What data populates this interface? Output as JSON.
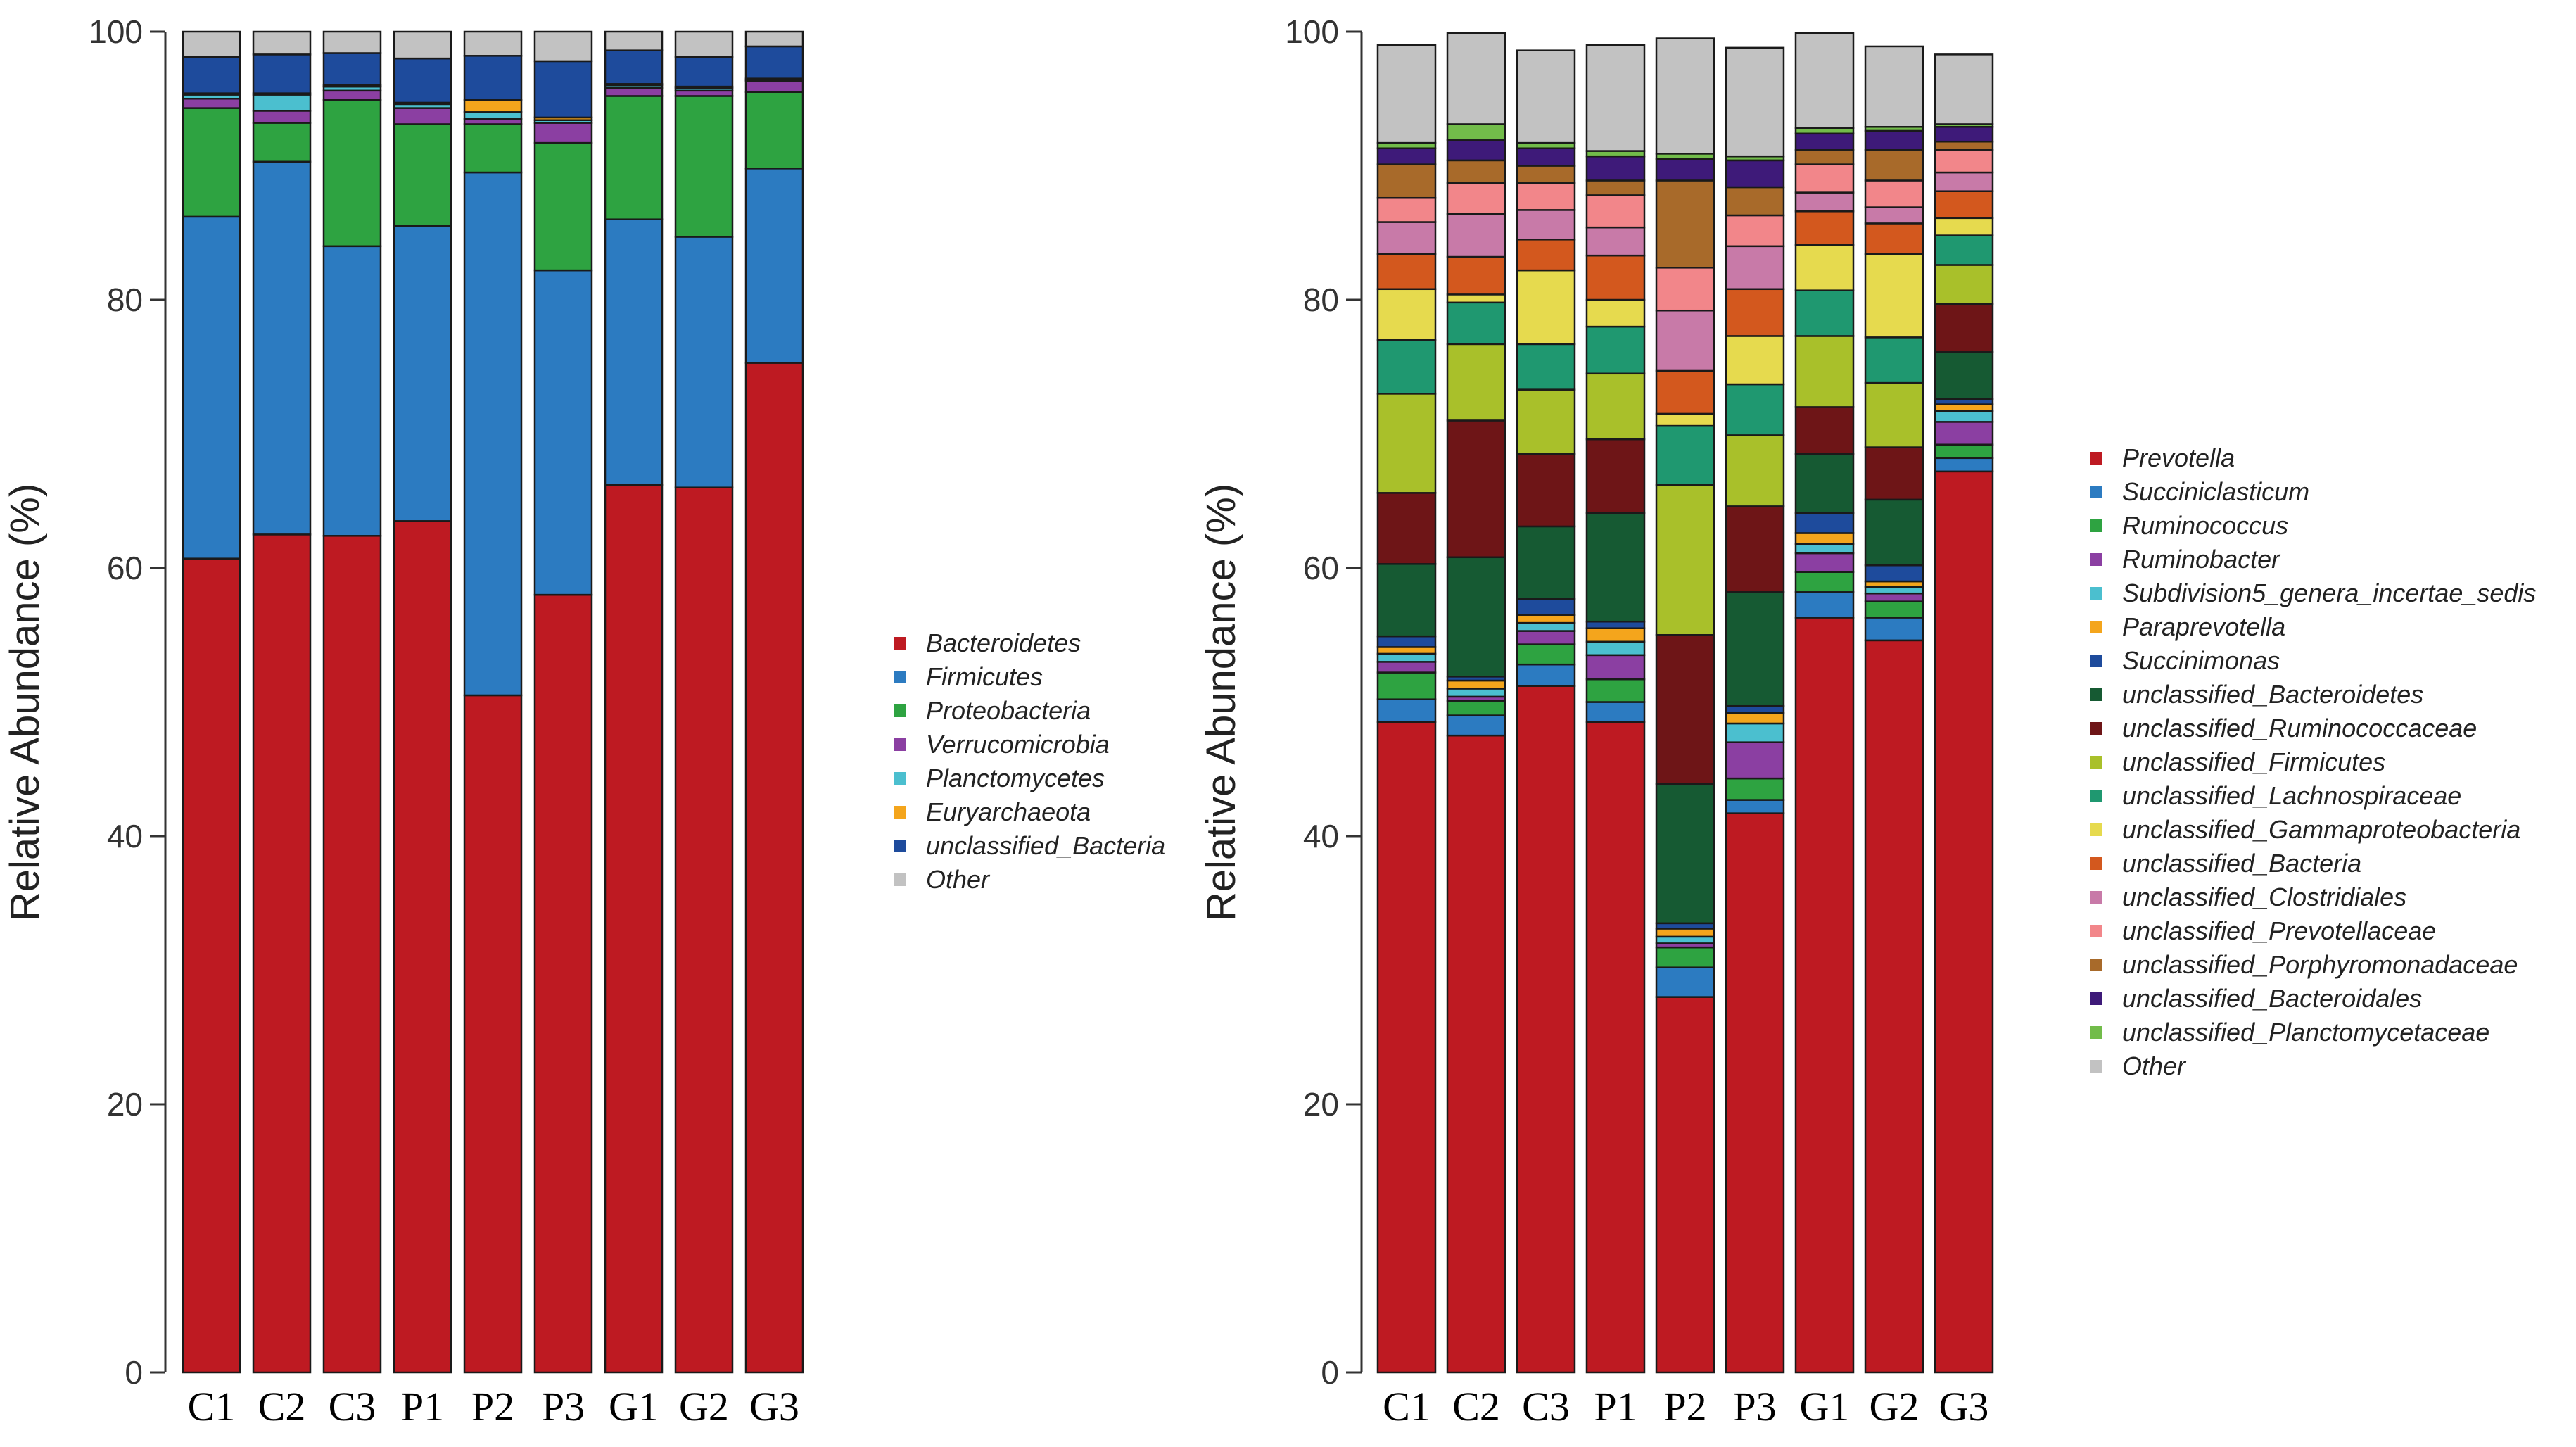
{
  "chart_data": [
    {
      "type": "bar",
      "stacked": true,
      "title": "",
      "xlabel": "",
      "ylabel": "Relative Abundance (%)",
      "ylim": [
        0,
        100
      ],
      "yticks": [
        "0",
        "20",
        "40",
        "60",
        "80",
        "100"
      ],
      "legend_position": "right",
      "categories": [
        "C1",
        "C2",
        "C3",
        "P1",
        "P2",
        "P3",
        "G1",
        "G2",
        "G3"
      ],
      "series": [
        {
          "name": "Bacteroidetes",
          "color": "#BE1A22",
          "values": [
            60.7,
            62.5,
            62.4,
            63.5,
            50.5,
            58.0,
            66.2,
            66.0,
            75.3
          ]
        },
        {
          "name": "Firmicutes",
          "color": "#2C7BC1",
          "values": [
            25.5,
            27.8,
            21.6,
            22.0,
            39.0,
            24.2,
            19.8,
            18.7,
            14.5
          ]
        },
        {
          "name": "Proteobacteria",
          "color": "#2EA341",
          "values": [
            8.1,
            2.9,
            10.9,
            7.6,
            3.6,
            9.5,
            9.2,
            10.5,
            5.7
          ]
        },
        {
          "name": "Verrucomicrobia",
          "color": "#8B3FA2",
          "values": [
            0.7,
            0.9,
            0.7,
            1.2,
            0.4,
            1.5,
            0.6,
            0.4,
            0.8
          ]
        },
        {
          "name": "Planctomycetes",
          "color": "#4BBFCF",
          "values": [
            0.3,
            1.2,
            0.3,
            0.3,
            0.5,
            0.2,
            0.2,
            0.2,
            0.1
          ]
        },
        {
          "name": "Euryarchaeota",
          "color": "#F4A51C",
          "values": [
            0.1,
            0.1,
            0.1,
            0.1,
            0.9,
            0.2,
            0.1,
            0.1,
            0.1
          ]
        },
        {
          "name": "unclassified_Bacteria",
          "color": "#1E4B9C",
          "values": [
            2.7,
            2.9,
            2.4,
            3.3,
            3.3,
            4.2,
            2.5,
            2.2,
            2.4
          ]
        },
        {
          "name": "Other",
          "color": "#C2C2C2",
          "values": [
            1.9,
            1.7,
            1.6,
            2.0,
            1.8,
            2.2,
            1.4,
            1.9,
            1.1
          ]
        }
      ]
    },
    {
      "type": "bar",
      "stacked": true,
      "title": "",
      "xlabel": "",
      "ylabel": "Relative Abundance (%)",
      "ylim": [
        0,
        100
      ],
      "yticks": [
        "0",
        "20",
        "40",
        "60",
        "80",
        "100"
      ],
      "legend_position": "right",
      "categories": [
        "C1",
        "C2",
        "C3",
        "P1",
        "P2",
        "P3",
        "G1",
        "G2",
        "G3"
      ],
      "series": [
        {
          "name": "Prevotella",
          "color": "#BE1A22",
          "values": [
            48.5,
            47.5,
            51.2,
            48.5,
            28.0,
            41.7,
            56.3,
            54.6,
            67.2
          ]
        },
        {
          "name": "Succiniclasticum",
          "color": "#2C7BC1",
          "values": [
            1.7,
            1.5,
            1.6,
            1.5,
            2.2,
            1.0,
            1.9,
            1.7,
            1.0
          ]
        },
        {
          "name": "Ruminococcus",
          "color": "#2EA341",
          "values": [
            2.0,
            1.1,
            1.5,
            1.7,
            1.5,
            1.6,
            1.5,
            1.2,
            1.0
          ]
        },
        {
          "name": "Ruminobacter",
          "color": "#8B3FA2",
          "values": [
            0.8,
            0.3,
            1.0,
            1.8,
            0.3,
            2.7,
            1.4,
            0.6,
            1.7
          ]
        },
        {
          "name": "Subdivision5_genera_incertae_sedis",
          "color": "#4BBFCF",
          "values": [
            0.6,
            0.6,
            0.6,
            1.0,
            0.5,
            1.4,
            0.7,
            0.5,
            0.8
          ]
        },
        {
          "name": "Paraprevotella",
          "color": "#F4A51C",
          "values": [
            0.5,
            0.6,
            0.6,
            1.0,
            0.6,
            0.8,
            0.8,
            0.4,
            0.5
          ]
        },
        {
          "name": "Succinimonas",
          "color": "#1E4B9C",
          "values": [
            0.8,
            0.3,
            1.2,
            0.5,
            0.4,
            0.5,
            1.5,
            1.2,
            0.4
          ]
        },
        {
          "name": "unclassified_Bacteroidetes",
          "color": "#165A33",
          "values": [
            5.4,
            8.9,
            5.4,
            8.1,
            10.4,
            8.5,
            4.4,
            4.9,
            3.5
          ]
        },
        {
          "name": "unclassified_Ruminococcaceae",
          "color": "#6E1517",
          "values": [
            5.3,
            10.2,
            5.4,
            5.5,
            11.1,
            6.4,
            3.5,
            3.9,
            3.6
          ]
        },
        {
          "name": "unclassified_Firmicutes",
          "color": "#A9C02A",
          "values": [
            7.4,
            5.7,
            4.8,
            4.9,
            11.2,
            5.3,
            5.3,
            4.8,
            2.9
          ]
        },
        {
          "name": "unclassified_Lachnospiraceae",
          "color": "#1F9870",
          "values": [
            4.0,
            3.1,
            3.4,
            3.5,
            4.4,
            3.8,
            3.4,
            3.4,
            2.2
          ]
        },
        {
          "name": "unclassified_Gammaproteobacteria",
          "color": "#E6DA4E",
          "values": [
            3.8,
            0.6,
            5.5,
            2.0,
            0.9,
            3.6,
            3.4,
            6.2,
            1.3
          ]
        },
        {
          "name": "unclassified_Bacteria",
          "color": "#D3581E",
          "values": [
            2.6,
            2.8,
            2.3,
            3.3,
            3.2,
            3.5,
            2.5,
            2.3,
            2.0
          ]
        },
        {
          "name": "unclassified_Clostridiales",
          "color": "#C87AA8",
          "values": [
            2.4,
            3.2,
            2.2,
            2.1,
            4.5,
            3.2,
            1.4,
            1.2,
            1.4
          ]
        },
        {
          "name": "unclassified_Prevotellaceae",
          "color": "#F2868A",
          "values": [
            1.8,
            2.3,
            2.0,
            2.4,
            3.2,
            2.3,
            2.1,
            2.0,
            1.7
          ]
        },
        {
          "name": "unclassified_Porphyromonadaceae",
          "color": "#A86A2A",
          "values": [
            2.5,
            1.7,
            1.3,
            1.1,
            6.5,
            2.1,
            1.1,
            2.3,
            0.6
          ]
        },
        {
          "name": "unclassified_Bacteroidales",
          "color": "#3E1A79",
          "values": [
            1.2,
            1.5,
            1.3,
            1.8,
            1.6,
            2.0,
            1.2,
            1.4,
            1.1
          ]
        },
        {
          "name": "unclassified_Planctomycetaceae",
          "color": "#72BC4A",
          "values": [
            0.4,
            1.2,
            0.4,
            0.4,
            0.4,
            0.3,
            0.4,
            0.3,
            0.2
          ]
        },
        {
          "name": "Other",
          "color": "#C2C2C2",
          "values": [
            7.3,
            6.8,
            6.9,
            7.9,
            8.6,
            8.1,
            7.1,
            6.0,
            5.2
          ]
        }
      ]
    }
  ]
}
